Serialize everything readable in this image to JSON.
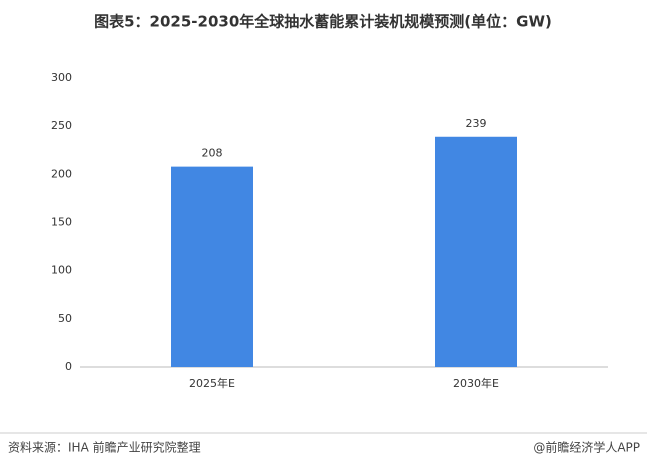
{
  "chart_data": {
    "type": "bar",
    "title": "图表5：2025-2030年全球抽水蓄能累计装机规模预测(单位：GW)",
    "categories": [
      "2025年E",
      "2030年E"
    ],
    "values": [
      208,
      239
    ],
    "color": "#4187e3",
    "ylim": [
      0,
      300
    ],
    "yticks": [
      0,
      50,
      100,
      150,
      200,
      250,
      300
    ],
    "grid": false,
    "source": "资料来源：IHA 前瞻产业研究院整理",
    "credit": "@前瞻经济学人APP"
  }
}
